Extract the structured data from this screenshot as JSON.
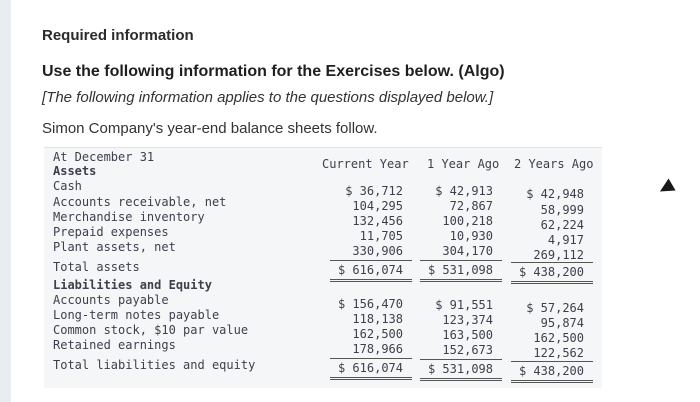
{
  "header": {
    "required": "Required information",
    "instruction": "Use the following information for the Exercises below. (Algo)",
    "note": "[The following information applies to the questions displayed below.]",
    "intro": "Simon Company's year-end balance sheets follow."
  },
  "table": {
    "title": "At December 31",
    "columns": [
      "Current Year",
      "1 Year Ago",
      "2 Years Ago"
    ],
    "sections": {
      "assets": "Assets",
      "liabilities": "Liabilities and Equity"
    },
    "rows": [
      {
        "label": "Cash",
        "values": [
          "$ 36,712",
          "$ 42,913",
          "$ 42,948"
        ]
      },
      {
        "label": "Accounts receivable, net",
        "values": [
          "104,295",
          "72,867",
          "58,999"
        ]
      },
      {
        "label": "Merchandise inventory",
        "values": [
          "132,456",
          "100,218",
          "62,224"
        ]
      },
      {
        "label": "Prepaid expenses",
        "values": [
          "11,705",
          "10,930",
          "4,917"
        ]
      },
      {
        "label": "Plant assets, net",
        "values": [
          "330,906",
          "304,170",
          "269,112"
        ]
      },
      {
        "label": "Total assets",
        "values": [
          "$ 616,074",
          "$ 531,098",
          "$ 438,200"
        ]
      },
      {
        "label": "Accounts payable",
        "values": [
          "$ 156,470",
          "$ 91,551",
          "$ 57,264"
        ]
      },
      {
        "label": "Long-term notes payable",
        "values": [
          "118,138",
          "123,374",
          "95,874"
        ]
      },
      {
        "label": "Common stock, $10 par value",
        "values": [
          "162,500",
          "163,500",
          "162,500"
        ]
      },
      {
        "label": "Retained earnings",
        "values": [
          "178,966",
          "152,673",
          "122,562"
        ]
      },
      {
        "label": "Total liabilities and equity",
        "values": [
          "$ 616,074",
          "$ 531,098",
          "$ 438,200"
        ]
      }
    ]
  },
  "colors": {
    "panel": "#f4f6f8",
    "text": "#3d3f4d"
  },
  "icons": [
    "cursor-arrow-icon"
  ]
}
